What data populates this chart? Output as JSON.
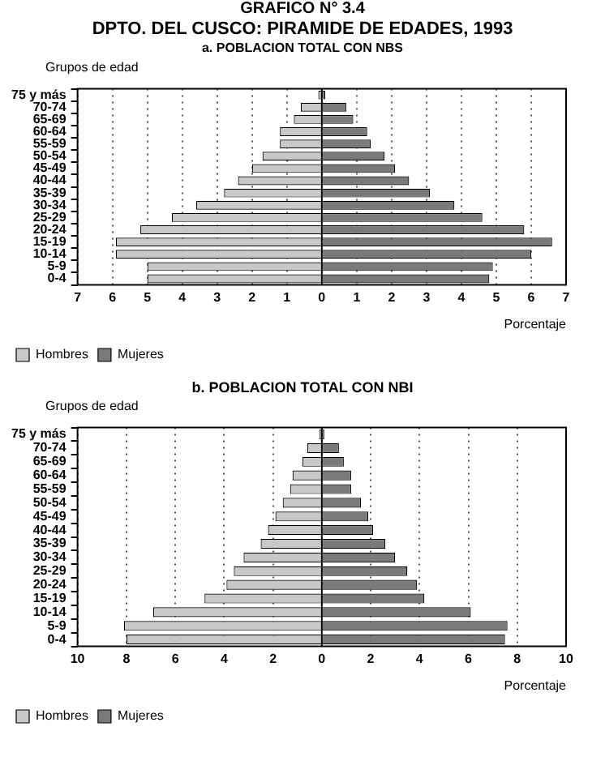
{
  "chart_data": [
    {
      "type": "bar",
      "orientation": "horizontal",
      "stacked": true,
      "annotations": [
        "GRAFICO  N° 3.4"
      ],
      "title": "DPTO. DEL CUSCO: PIRAMIDE DE EDADES, 1993",
      "subtitle": "a. POBLACION TOTAL  CON  NBS",
      "xlabel": "Porcentaje",
      "ylabel": "Grupos de edad",
      "categories": [
        "75 y más",
        "70-74",
        "65-69",
        "60-64",
        "55-59",
        "50-54",
        "45-49",
        "40-44",
        "35-39",
        "30-34",
        "25-29",
        "20-24",
        "15-19",
        "10-14",
        "5-9",
        "0-4"
      ],
      "series": [
        {
          "name": "Hombres",
          "color": "#c8c8c8",
          "values": [
            -0.1,
            -0.6,
            -0.8,
            -1.2,
            -1.2,
            -1.7,
            -2.0,
            -2.4,
            -2.8,
            -3.6,
            -4.3,
            -5.2,
            -5.9,
            -5.9,
            -5.0,
            -5.0
          ]
        },
        {
          "name": "Mujeres",
          "color": "#7a7a7a",
          "values": [
            0.1,
            0.7,
            0.9,
            1.3,
            1.4,
            1.8,
            2.1,
            2.5,
            3.1,
            3.8,
            4.6,
            5.8,
            6.6,
            6.0,
            4.9,
            4.8
          ]
        }
      ],
      "xlim": [
        -7,
        7
      ],
      "xticks": [
        {
          "value": -7,
          "label": "7"
        },
        {
          "value": -6,
          "label": "6"
        },
        {
          "value": -5,
          "label": "5"
        },
        {
          "value": -4,
          "label": "4"
        },
        {
          "value": -3,
          "label": "3"
        },
        {
          "value": -2,
          "label": "2"
        },
        {
          "value": -1,
          "label": "1"
        },
        0,
        1,
        2,
        3,
        4,
        5,
        6,
        7
      ],
      "grid": "x",
      "legend": "bottom"
    },
    {
      "type": "bar",
      "orientation": "horizontal",
      "stacked": true,
      "title": "b. POBLACION TOTAL CON NBI",
      "xlabel": "Porcentaje",
      "ylabel": "Grupos de edad",
      "categories": [
        "75 y más",
        "70-74",
        "65-69",
        "60-64",
        "55-59",
        "50-54",
        "45-49",
        "40-44",
        "35-39",
        "30-34",
        "25-29",
        "20-24",
        "15-19",
        "10-14",
        "5-9",
        "0-4"
      ],
      "series": [
        {
          "name": "Hombres",
          "color": "#c8c8c8",
          "values": [
            -0.1,
            -0.6,
            -0.8,
            -1.2,
            -1.3,
            -1.6,
            -1.9,
            -2.2,
            -2.5,
            -3.2,
            -3.6,
            -3.9,
            -4.8,
            -6.9,
            -8.1,
            -8.0
          ]
        },
        {
          "name": "Mujeres",
          "color": "#7a7a7a",
          "values": [
            0.1,
            0.7,
            0.9,
            1.2,
            1.2,
            1.6,
            1.9,
            2.1,
            2.6,
            3.0,
            3.5,
            3.9,
            4.2,
            6.1,
            7.6,
            7.5
          ]
        }
      ],
      "xlim": [
        -10,
        10
      ],
      "xticks": [
        {
          "value": -10,
          "label": "10"
        },
        {
          "value": -8,
          "label": "8"
        },
        {
          "value": -6,
          "label": "6"
        },
        {
          "value": -4,
          "label": "4"
        },
        {
          "value": -2,
          "label": "2"
        },
        0,
        2,
        4,
        6,
        8,
        10
      ],
      "grid": "x",
      "legend": "bottom"
    }
  ]
}
